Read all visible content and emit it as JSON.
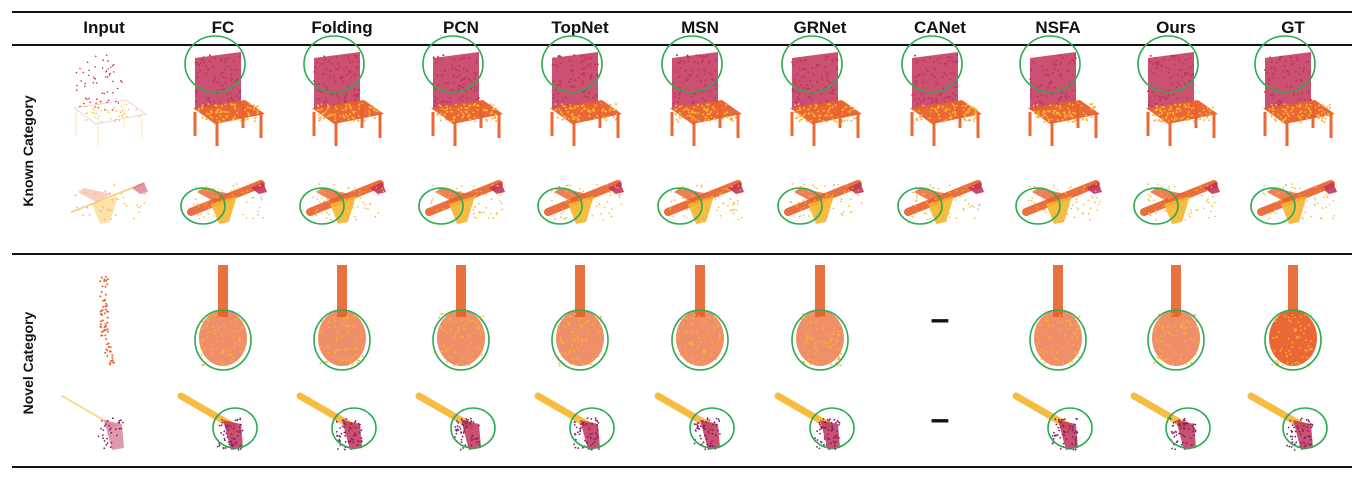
{
  "figure": {
    "column_headers": [
      "Input",
      "FC",
      "Folding",
      "PCN",
      "TopNet",
      "MSN",
      "GRNet",
      "CANet",
      "NSFA",
      "Ours",
      "GT"
    ],
    "row_groups": [
      {
        "label": "Known Category",
        "rows": [
          {
            "object": "chair",
            "cells": [
              "input",
              "pred",
              "pred",
              "pred",
              "pred",
              "pred",
              "pred",
              "pred",
              "pred",
              "pred",
              "gt"
            ]
          },
          {
            "object": "airplane",
            "cells": [
              "input",
              "pred",
              "pred",
              "pred",
              "pred",
              "pred",
              "pred",
              "pred",
              "pred",
              "pred",
              "gt"
            ]
          }
        ]
      },
      {
        "label": "Novel Category",
        "rows": [
          {
            "object": "guitar",
            "cells": [
              "input",
              "pred",
              "pred",
              "pred",
              "pred",
              "pred",
              "pred",
              "missing",
              "pred",
              "pred",
              "gt"
            ]
          },
          {
            "object": "pistol",
            "cells": [
              "input",
              "pred",
              "pred",
              "pred",
              "pred",
              "pred",
              "pred",
              "missing",
              "pred",
              "pred",
              "gt"
            ]
          }
        ]
      }
    ],
    "missing_marker": "–",
    "colors": {
      "highlight_ellipse": "#2eaa52",
      "point_dark": "#c2335a",
      "point_mid": "#e8602a",
      "point_light": "#f7b52e",
      "point_purple": "#7a1f6a"
    }
  }
}
